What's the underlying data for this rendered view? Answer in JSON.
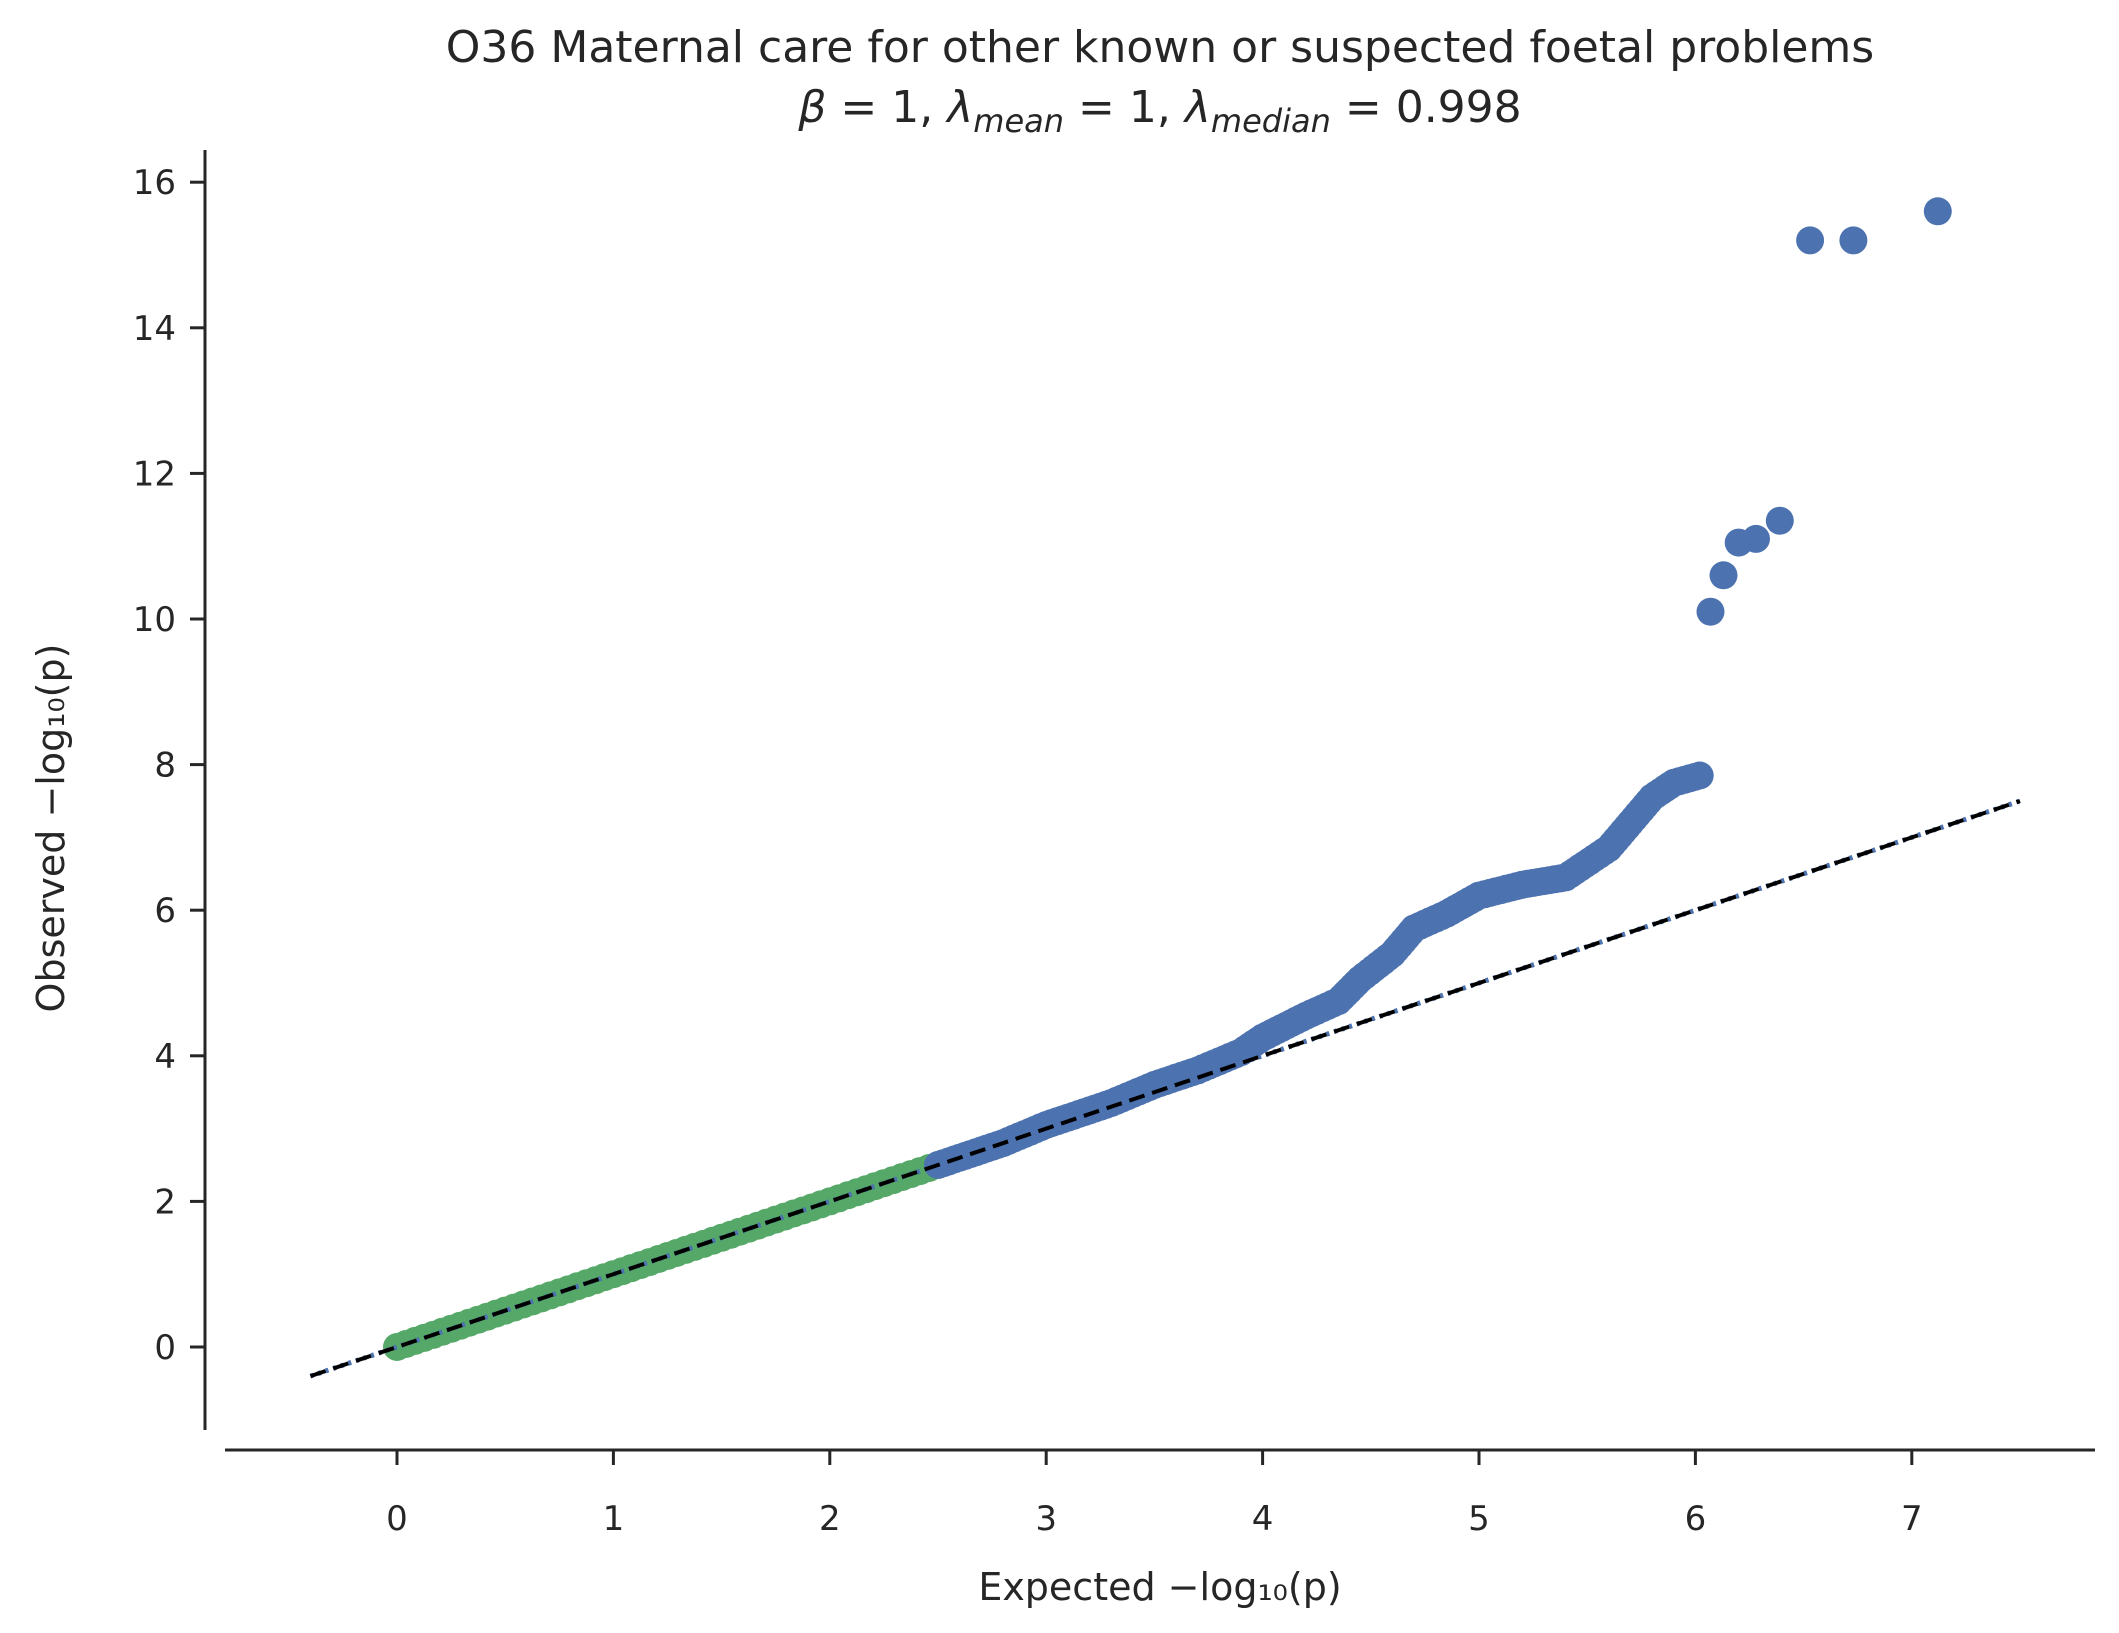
{
  "chart_data": {
    "type": "scatter",
    "title": "O36 Maternal care for other known or suspected foetal problems",
    "subtitle": {
      "beta_symbol": "β",
      "beta_value": "1",
      "lambda_symbol": "λ",
      "lambda_mean_sub": "mean",
      "lambda_mean_value": "1",
      "lambda_median_sub": "median",
      "lambda_median_value": "0.998",
      "equals": " = ",
      "separator": ", "
    },
    "xlabel": "Expected −log₁₀(p)",
    "ylabel": "Observed −log₁₀(p)",
    "xlim": [
      -0.8,
      7.9
    ],
    "ylim": [
      -1.2,
      16.5
    ],
    "x_ticks": [
      0,
      1,
      2,
      3,
      4,
      5,
      6,
      7
    ],
    "y_ticks": [
      0,
      2,
      4,
      6,
      8,
      10,
      12,
      14,
      16
    ],
    "grid": false,
    "legend": "none",
    "colors": {
      "blue": "#4c72b0",
      "green": "#55a868",
      "reference": "#000000",
      "axis": "#262626"
    },
    "reference_line": {
      "x": [
        -0.4,
        7.5
      ],
      "y": [
        -0.4,
        7.5
      ],
      "style": "dashed"
    },
    "series": [
      {
        "color": "#55a868",
        "range": {
          "x_start": 0.0,
          "x_end": 2.5,
          "y_start": 0.0,
          "y_end": 2.5
        }
      },
      {
        "color": "#4c72b0",
        "curve": [
          [
            2.5,
            2.5
          ],
          [
            2.8,
            2.8
          ],
          [
            3.0,
            3.05
          ],
          [
            3.3,
            3.35
          ],
          [
            3.5,
            3.6
          ],
          [
            3.7,
            3.8
          ],
          [
            3.9,
            4.05
          ],
          [
            4.0,
            4.25
          ],
          [
            4.2,
            4.55
          ],
          [
            4.35,
            4.75
          ],
          [
            4.45,
            5.05
          ],
          [
            4.6,
            5.4
          ],
          [
            4.7,
            5.75
          ],
          [
            4.85,
            5.95
          ],
          [
            5.0,
            6.2
          ],
          [
            5.2,
            6.35
          ],
          [
            5.4,
            6.45
          ],
          [
            5.6,
            6.85
          ],
          [
            5.7,
            7.2
          ],
          [
            5.8,
            7.55
          ],
          [
            5.9,
            7.75
          ],
          [
            6.02,
            7.85
          ]
        ],
        "outliers": [
          [
            6.07,
            10.1
          ],
          [
            6.13,
            10.6
          ],
          [
            6.2,
            11.05
          ],
          [
            6.28,
            11.1
          ],
          [
            6.39,
            11.35
          ],
          [
            6.53,
            15.2
          ],
          [
            6.73,
            15.2
          ],
          [
            7.12,
            15.6
          ]
        ]
      }
    ]
  }
}
